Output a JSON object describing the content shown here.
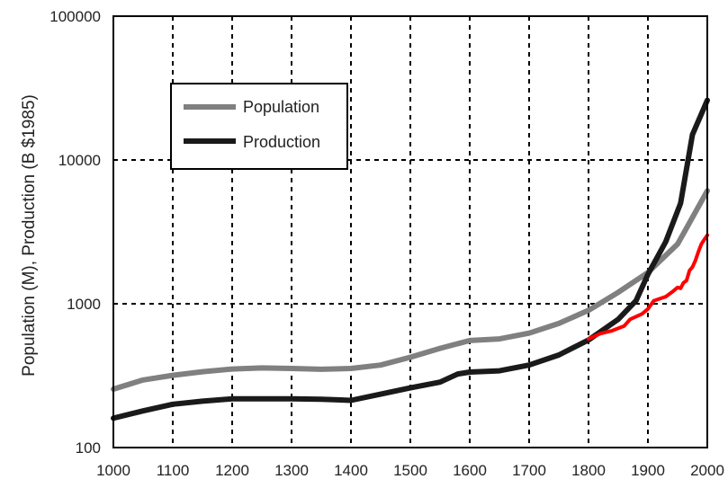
{
  "chart_data": {
    "type": "line",
    "xlabel": "",
    "ylabel": "Population (M), Production (B $1985)",
    "xlim": [
      1000,
      2000
    ],
    "ylim": [
      100,
      100000
    ],
    "yscale": "log",
    "x_ticks": [
      "1000",
      "1100",
      "1200",
      "1300",
      "1400",
      "1500",
      "1600",
      "1700",
      "1800",
      "1900",
      "2000"
    ],
    "y_ticks": [
      "100",
      "1000",
      "10000",
      "100000"
    ],
    "grid": true,
    "legend_position": "upper-left",
    "series": [
      {
        "name": "Population",
        "color": "#808080",
        "points": [
          [
            1000,
            255
          ],
          [
            1050,
            295
          ],
          [
            1100,
            318
          ],
          [
            1150,
            337
          ],
          [
            1200,
            352
          ],
          [
            1250,
            358
          ],
          [
            1300,
            355
          ],
          [
            1350,
            350
          ],
          [
            1400,
            355
          ],
          [
            1450,
            375
          ],
          [
            1500,
            425
          ],
          [
            1550,
            490
          ],
          [
            1600,
            555
          ],
          [
            1650,
            570
          ],
          [
            1700,
            625
          ],
          [
            1750,
            730
          ],
          [
            1800,
            900
          ],
          [
            1850,
            1200
          ],
          [
            1900,
            1650
          ],
          [
            1950,
            2600
          ],
          [
            2000,
            6100
          ]
        ]
      },
      {
        "name": "Production",
        "color": "#1a1a1a",
        "points": [
          [
            1000,
            160
          ],
          [
            1050,
            180
          ],
          [
            1100,
            200
          ],
          [
            1150,
            210
          ],
          [
            1200,
            218
          ],
          [
            1250,
            218
          ],
          [
            1300,
            218
          ],
          [
            1350,
            217
          ],
          [
            1400,
            213
          ],
          [
            1450,
            235
          ],
          [
            1500,
            260
          ],
          [
            1550,
            285
          ],
          [
            1580,
            325
          ],
          [
            1600,
            335
          ],
          [
            1650,
            342
          ],
          [
            1700,
            375
          ],
          [
            1750,
            440
          ],
          [
            1800,
            560
          ],
          [
            1850,
            780
          ],
          [
            1880,
            1050
          ],
          [
            1900,
            1600
          ],
          [
            1930,
            2700
          ],
          [
            1955,
            5000
          ],
          [
            1975,
            15000
          ],
          [
            2000,
            26000
          ]
        ]
      },
      {
        "name": "",
        "color": "#ff0000",
        "points": [
          [
            1800,
            570
          ],
          [
            1820,
            620
          ],
          [
            1840,
            650
          ],
          [
            1860,
            700
          ],
          [
            1870,
            780
          ],
          [
            1890,
            850
          ],
          [
            1900,
            920
          ],
          [
            1910,
            1050
          ],
          [
            1930,
            1120
          ],
          [
            1940,
            1200
          ],
          [
            1950,
            1300
          ],
          [
            1955,
            1280
          ],
          [
            1960,
            1400
          ],
          [
            1965,
            1450
          ],
          [
            1970,
            1700
          ],
          [
            1975,
            1800
          ],
          [
            1980,
            2000
          ],
          [
            1985,
            2300
          ],
          [
            1990,
            2600
          ],
          [
            1995,
            2800
          ],
          [
            2000,
            3000
          ]
        ]
      }
    ]
  }
}
